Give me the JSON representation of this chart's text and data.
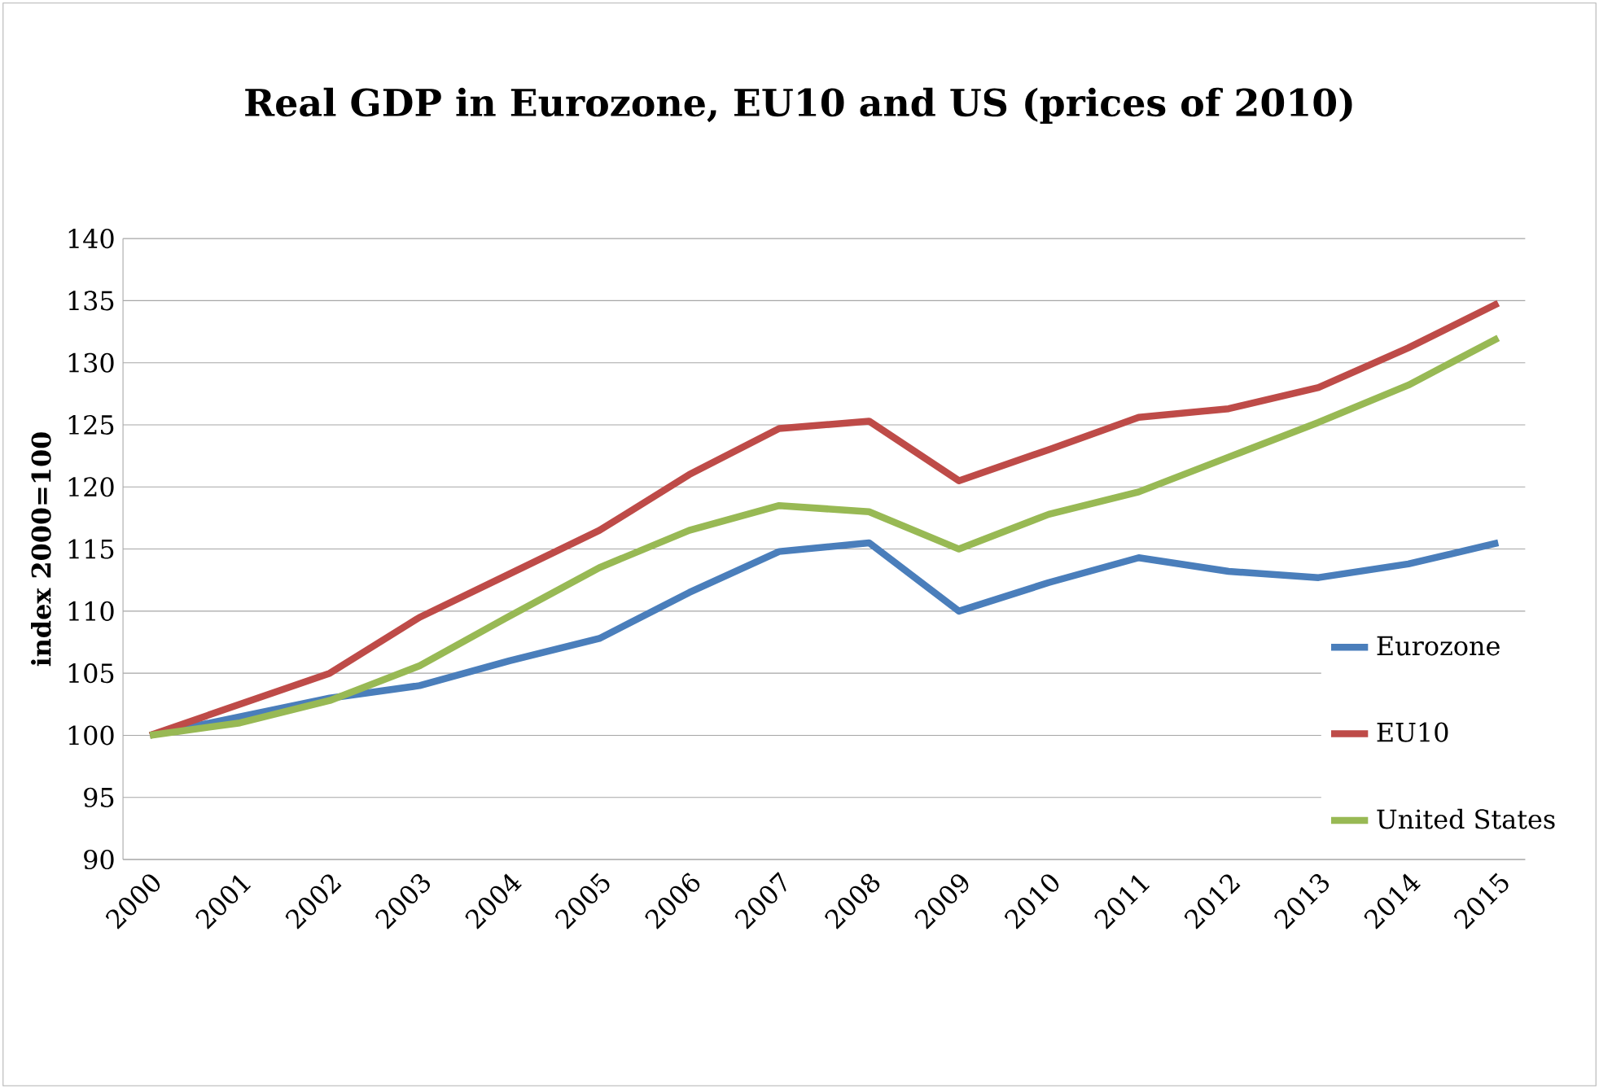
{
  "chart_data": {
    "type": "line",
    "title": "Real GDP in Eurozone, EU10 and US (prices of 2010)",
    "ylabel": "index 2000=100",
    "categories": [
      "2000",
      "2001",
      "2002",
      "2003",
      "2004",
      "2005",
      "2006",
      "2007",
      "2008",
      "2009",
      "2010",
      "2011",
      "2012",
      "2013",
      "2014",
      "2015"
    ],
    "series": [
      {
        "name": "Eurozone",
        "color": "#4a7ebb",
        "values": [
          100,
          101.5,
          103,
          104,
          106,
          107.8,
          111.5,
          114.8,
          115.5,
          110,
          112.3,
          114.3,
          113.2,
          112.7,
          113.8,
          115.5
        ]
      },
      {
        "name": "EU10",
        "color": "#be4b48",
        "values": [
          100,
          102.5,
          105,
          109.5,
          113,
          116.5,
          121,
          124.7,
          125.3,
          120.5,
          123,
          125.6,
          126.3,
          128,
          131.2,
          134.8
        ]
      },
      {
        "name": "United States",
        "color": "#98b954",
        "values": [
          100,
          101,
          102.8,
          105.6,
          109.6,
          113.5,
          116.5,
          118.5,
          118,
          115,
          117.8,
          119.6,
          122.4,
          125.2,
          128.2,
          132
        ]
      }
    ],
    "ylim": [
      90,
      140
    ],
    "yticks": [
      90,
      95,
      100,
      105,
      110,
      115,
      120,
      125,
      130,
      135,
      140
    ],
    "grid": "y",
    "legend": "bottom right",
    "marker": "none",
    "line_style": "solid"
  }
}
